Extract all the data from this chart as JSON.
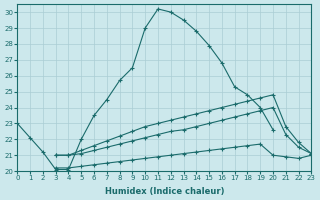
{
  "xlabel": "Humidex (Indice chaleur)",
  "bg_color": "#cce8ec",
  "grid_color": "#aacdd4",
  "line_color": "#1a6b6b",
  "xlim": [
    0,
    23
  ],
  "ylim": [
    20,
    30.5
  ],
  "xticks": [
    0,
    1,
    2,
    3,
    4,
    5,
    6,
    7,
    8,
    9,
    10,
    11,
    12,
    13,
    14,
    15,
    16,
    17,
    18,
    19,
    20,
    21,
    22,
    23
  ],
  "yticks": [
    20,
    21,
    22,
    23,
    24,
    25,
    26,
    27,
    28,
    29,
    30
  ],
  "line1_x": [
    0,
    1,
    2,
    3,
    4,
    5,
    6,
    7,
    8,
    9,
    10,
    11,
    12,
    13,
    14,
    15,
    16,
    17,
    18,
    19,
    20
  ],
  "line1_y": [
    23.0,
    22.1,
    21.2,
    20.1,
    20.1,
    22.0,
    23.5,
    24.5,
    25.7,
    26.5,
    29.0,
    30.2,
    30.0,
    29.5,
    28.8,
    27.9,
    26.8,
    25.3,
    24.8,
    24.0,
    22.6
  ],
  "line2_x": [
    3,
    4,
    5,
    6,
    7,
    8,
    9,
    10,
    11,
    12,
    13,
    14,
    15,
    16,
    17,
    18,
    19,
    20,
    21,
    22,
    23
  ],
  "line2_y": [
    21.0,
    21.0,
    21.3,
    21.6,
    21.9,
    22.2,
    22.5,
    22.8,
    23.0,
    23.2,
    23.4,
    23.6,
    23.8,
    24.0,
    24.2,
    24.4,
    24.6,
    24.8,
    22.8,
    21.8,
    21.1
  ],
  "line3_x": [
    3,
    4,
    5,
    6,
    7,
    8,
    9,
    10,
    11,
    12,
    13,
    14,
    15,
    16,
    17,
    18,
    19,
    20,
    21,
    22,
    23
  ],
  "line3_y": [
    21.0,
    21.0,
    21.1,
    21.3,
    21.5,
    21.7,
    21.9,
    22.1,
    22.3,
    22.5,
    22.6,
    22.8,
    23.0,
    23.2,
    23.4,
    23.6,
    23.8,
    24.0,
    22.3,
    21.5,
    21.1
  ],
  "line4_x": [
    3,
    4,
    5,
    6,
    7,
    8,
    9,
    10,
    11,
    12,
    13,
    14,
    15,
    16,
    17,
    18,
    19,
    20,
    21,
    22,
    23
  ],
  "line4_y": [
    20.2,
    20.2,
    20.3,
    20.4,
    20.5,
    20.6,
    20.7,
    20.8,
    20.9,
    21.0,
    21.1,
    21.2,
    21.3,
    21.4,
    21.5,
    21.6,
    21.7,
    21.0,
    20.9,
    20.8,
    21.0
  ]
}
